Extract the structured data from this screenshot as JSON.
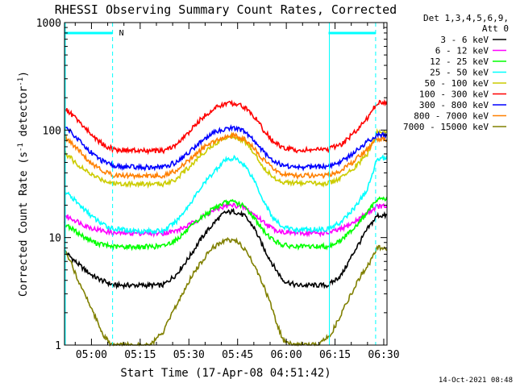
{
  "chart_data": {
    "type": "line",
    "title": "RHESSI Observing Summary Count Rates, Corrected",
    "xlabel": "Start Time (17-Apr-08 04:51:42)",
    "ylabel": "Corrected Count Rate (s",
    "ylabel_sup1": "-1",
    "ylabel_mid": " detector",
    "ylabel_sup2": "-1",
    "ylabel_end": ")",
    "y_scale": "log",
    "ylim": [
      1,
      1000
    ],
    "xlim_minutes": [
      291.7,
      391.0
    ],
    "x_tick_labels": [
      "05:00",
      "05:15",
      "05:30",
      "05:45",
      "06:00",
      "06:15",
      "06:30"
    ],
    "x_tick_minutes": [
      300,
      315,
      330,
      345,
      360,
      375,
      390
    ],
    "y_tick_labels": [
      "1",
      "10",
      "100",
      "1000"
    ],
    "y_tick_values": [
      1,
      10,
      100,
      1000
    ],
    "legend_header": [
      "Det 1,3,4,5,6,9,",
      "Att 0"
    ],
    "annotations": {
      "night_markers": {
        "label": "N",
        "color": "#00ffff",
        "intervals_minutes": [
          [
            291.7,
            306.5
          ],
          [
            373.0,
            387.5
          ]
        ],
        "dashed_minutes": [
          306.5,
          387.5
        ],
        "solid_minutes": [
          291.7,
          373.0
        ]
      }
    },
    "series": [
      {
        "name": "3 - 6 keV",
        "color": "#000000",
        "points": [
          [
            291.7,
            7.5
          ],
          [
            295,
            6
          ],
          [
            298,
            5
          ],
          [
            301,
            4.3
          ],
          [
            304,
            3.9
          ],
          [
            307,
            3.6
          ],
          [
            315,
            3.6
          ],
          [
            322,
            3.6
          ],
          [
            326,
            4.5
          ],
          [
            330,
            6.5
          ],
          [
            334,
            10
          ],
          [
            338,
            14
          ],
          [
            341,
            17
          ],
          [
            344,
            17.5
          ],
          [
            347,
            16
          ],
          [
            350,
            12.5
          ],
          [
            353,
            8
          ],
          [
            356,
            5.5
          ],
          [
            359,
            4
          ],
          [
            363,
            3.6
          ],
          [
            373,
            3.6
          ],
          [
            377,
            4.5
          ],
          [
            381,
            7.5
          ],
          [
            385,
            12
          ],
          [
            388,
            16
          ]
        ]
      },
      {
        "name": "6 - 12 keV",
        "color": "#ff00ff",
        "points": [
          [
            291.7,
            16
          ],
          [
            295,
            14.5
          ],
          [
            298,
            13
          ],
          [
            301,
            12
          ],
          [
            304,
            11.5
          ],
          [
            307,
            11
          ],
          [
            315,
            11
          ],
          [
            322,
            11
          ],
          [
            326,
            11.5
          ],
          [
            330,
            13
          ],
          [
            334,
            15.5
          ],
          [
            338,
            18
          ],
          [
            341,
            19.5
          ],
          [
            344,
            20
          ],
          [
            347,
            19
          ],
          [
            350,
            16.5
          ],
          [
            353,
            14
          ],
          [
            356,
            12
          ],
          [
            359,
            11.3
          ],
          [
            363,
            11
          ],
          [
            373,
            11
          ],
          [
            377,
            12
          ],
          [
            381,
            14
          ],
          [
            385,
            17
          ],
          [
            388,
            19.5
          ]
        ]
      },
      {
        "name": "12 - 25 keV",
        "color": "#00ff00",
        "points": [
          [
            291.7,
            13.5
          ],
          [
            295,
            11.5
          ],
          [
            298,
            10
          ],
          [
            301,
            9
          ],
          [
            304,
            8.5
          ],
          [
            307,
            8.2
          ],
          [
            315,
            8.2
          ],
          [
            322,
            8.3
          ],
          [
            326,
            9.5
          ],
          [
            330,
            12
          ],
          [
            334,
            15.5
          ],
          [
            338,
            19
          ],
          [
            341,
            21
          ],
          [
            344,
            21.5
          ],
          [
            347,
            19.5
          ],
          [
            350,
            15.5
          ],
          [
            353,
            11.5
          ],
          [
            356,
            9.5
          ],
          [
            359,
            8.5
          ],
          [
            363,
            8.2
          ],
          [
            373,
            8.3
          ],
          [
            377,
            9.5
          ],
          [
            381,
            12.5
          ],
          [
            385,
            17
          ],
          [
            388,
            23
          ]
        ]
      },
      {
        "name": "25 - 50 keV",
        "color": "#00ffff",
        "points": [
          [
            291.7,
            27
          ],
          [
            295,
            22
          ],
          [
            298,
            18
          ],
          [
            301,
            15
          ],
          [
            304,
            13
          ],
          [
            307,
            12
          ],
          [
            315,
            11.5
          ],
          [
            322,
            11.5
          ],
          [
            326,
            14
          ],
          [
            330,
            20
          ],
          [
            334,
            30
          ],
          [
            338,
            42
          ],
          [
            341,
            52
          ],
          [
            344,
            55
          ],
          [
            347,
            48
          ],
          [
            350,
            35
          ],
          [
            353,
            22
          ],
          [
            356,
            15
          ],
          [
            359,
            12.5
          ],
          [
            363,
            11.8
          ],
          [
            373,
            12
          ],
          [
            377,
            14
          ],
          [
            381,
            19
          ],
          [
            385,
            28
          ],
          [
            388,
            55
          ]
        ]
      },
      {
        "name": "50 - 100 keV",
        "color": "#cccc00",
        "points": [
          [
            291.7,
            62
          ],
          [
            295,
            50
          ],
          [
            298,
            42
          ],
          [
            301,
            37
          ],
          [
            304,
            34
          ],
          [
            307,
            32
          ],
          [
            315,
            31.5
          ],
          [
            322,
            31.5
          ],
          [
            326,
            35
          ],
          [
            330,
            45
          ],
          [
            334,
            60
          ],
          [
            338,
            75
          ],
          [
            341,
            85
          ],
          [
            344,
            88
          ],
          [
            347,
            80
          ],
          [
            350,
            62
          ],
          [
            353,
            45
          ],
          [
            356,
            36
          ],
          [
            359,
            33
          ],
          [
            363,
            32
          ],
          [
            373,
            32
          ],
          [
            377,
            36
          ],
          [
            381,
            45
          ],
          [
            385,
            60
          ],
          [
            388,
            95
          ]
        ]
      },
      {
        "name": "100 - 300 keV",
        "color": "#ff0000",
        "points": [
          [
            291.7,
            160
          ],
          [
            295,
            130
          ],
          [
            298,
            105
          ],
          [
            301,
            85
          ],
          [
            304,
            72
          ],
          [
            307,
            66
          ],
          [
            315,
            64
          ],
          [
            322,
            64
          ],
          [
            326,
            72
          ],
          [
            330,
            95
          ],
          [
            334,
            130
          ],
          [
            338,
            160
          ],
          [
            341,
            175
          ],
          [
            344,
            178
          ],
          [
            347,
            165
          ],
          [
            350,
            135
          ],
          [
            353,
            100
          ],
          [
            356,
            78
          ],
          [
            359,
            68
          ],
          [
            363,
            65
          ],
          [
            373,
            66
          ],
          [
            377,
            74
          ],
          [
            381,
            95
          ],
          [
            385,
            130
          ],
          [
            388,
            180
          ]
        ]
      },
      {
        "name": "300 - 800 keV",
        "color": "#0000ff",
        "points": [
          [
            291.7,
            110
          ],
          [
            295,
            88
          ],
          [
            298,
            70
          ],
          [
            301,
            58
          ],
          [
            304,
            50
          ],
          [
            307,
            46
          ],
          [
            315,
            45
          ],
          [
            322,
            45
          ],
          [
            326,
            50
          ],
          [
            330,
            62
          ],
          [
            334,
            80
          ],
          [
            338,
            95
          ],
          [
            341,
            103
          ],
          [
            344,
            105
          ],
          [
            347,
            97
          ],
          [
            350,
            80
          ],
          [
            353,
            63
          ],
          [
            356,
            52
          ],
          [
            359,
            47
          ],
          [
            363,
            45
          ],
          [
            373,
            46
          ],
          [
            377,
            51
          ],
          [
            381,
            62
          ],
          [
            385,
            78
          ],
          [
            388,
            90
          ]
        ]
      },
      {
        "name": "800 - 7000 keV",
        "color": "#ff8000",
        "points": [
          [
            291.7,
            85
          ],
          [
            295,
            70
          ],
          [
            298,
            56
          ],
          [
            301,
            47
          ],
          [
            304,
            41
          ],
          [
            307,
            38
          ],
          [
            315,
            37.5
          ],
          [
            322,
            37.5
          ],
          [
            326,
            42
          ],
          [
            330,
            52
          ],
          [
            334,
            67
          ],
          [
            338,
            80
          ],
          [
            341,
            87
          ],
          [
            344,
            89
          ],
          [
            347,
            82
          ],
          [
            350,
            68
          ],
          [
            353,
            53
          ],
          [
            356,
            43
          ],
          [
            359,
            39
          ],
          [
            363,
            37.5
          ],
          [
            373,
            38
          ],
          [
            377,
            42
          ],
          [
            381,
            52
          ],
          [
            385,
            66
          ],
          [
            388,
            82
          ]
        ]
      },
      {
        "name": "7000 - 15000 keV",
        "color": "#808000",
        "points": [
          [
            291.7,
            7.5
          ],
          [
            294,
            5.5
          ],
          [
            296,
            4
          ],
          [
            298,
            3
          ],
          [
            300,
            2.2
          ],
          [
            302,
            1.6
          ],
          [
            304,
            1.2
          ],
          [
            306,
            1
          ],
          [
            312,
            1
          ],
          [
            318,
            1
          ],
          [
            322,
            1.3
          ],
          [
            325,
            2
          ],
          [
            328,
            3
          ],
          [
            331,
            4.5
          ],
          [
            334,
            6
          ],
          [
            337,
            8
          ],
          [
            340,
            9
          ],
          [
            342,
            9.5
          ],
          [
            344,
            9.5
          ],
          [
            346,
            8.5
          ],
          [
            349,
            6.5
          ],
          [
            352,
            4.2
          ],
          [
            355,
            2.5
          ],
          [
            357,
            1.6
          ],
          [
            359,
            1.1
          ],
          [
            362,
            1
          ],
          [
            370,
            1
          ],
          [
            374,
            1.3
          ],
          [
            377,
            2
          ],
          [
            380,
            3
          ],
          [
            383,
            4.5
          ],
          [
            386,
            6
          ],
          [
            388,
            8
          ]
        ]
      }
    ]
  },
  "footer": {
    "timestamp": "14-Oct-2021 08:48"
  }
}
